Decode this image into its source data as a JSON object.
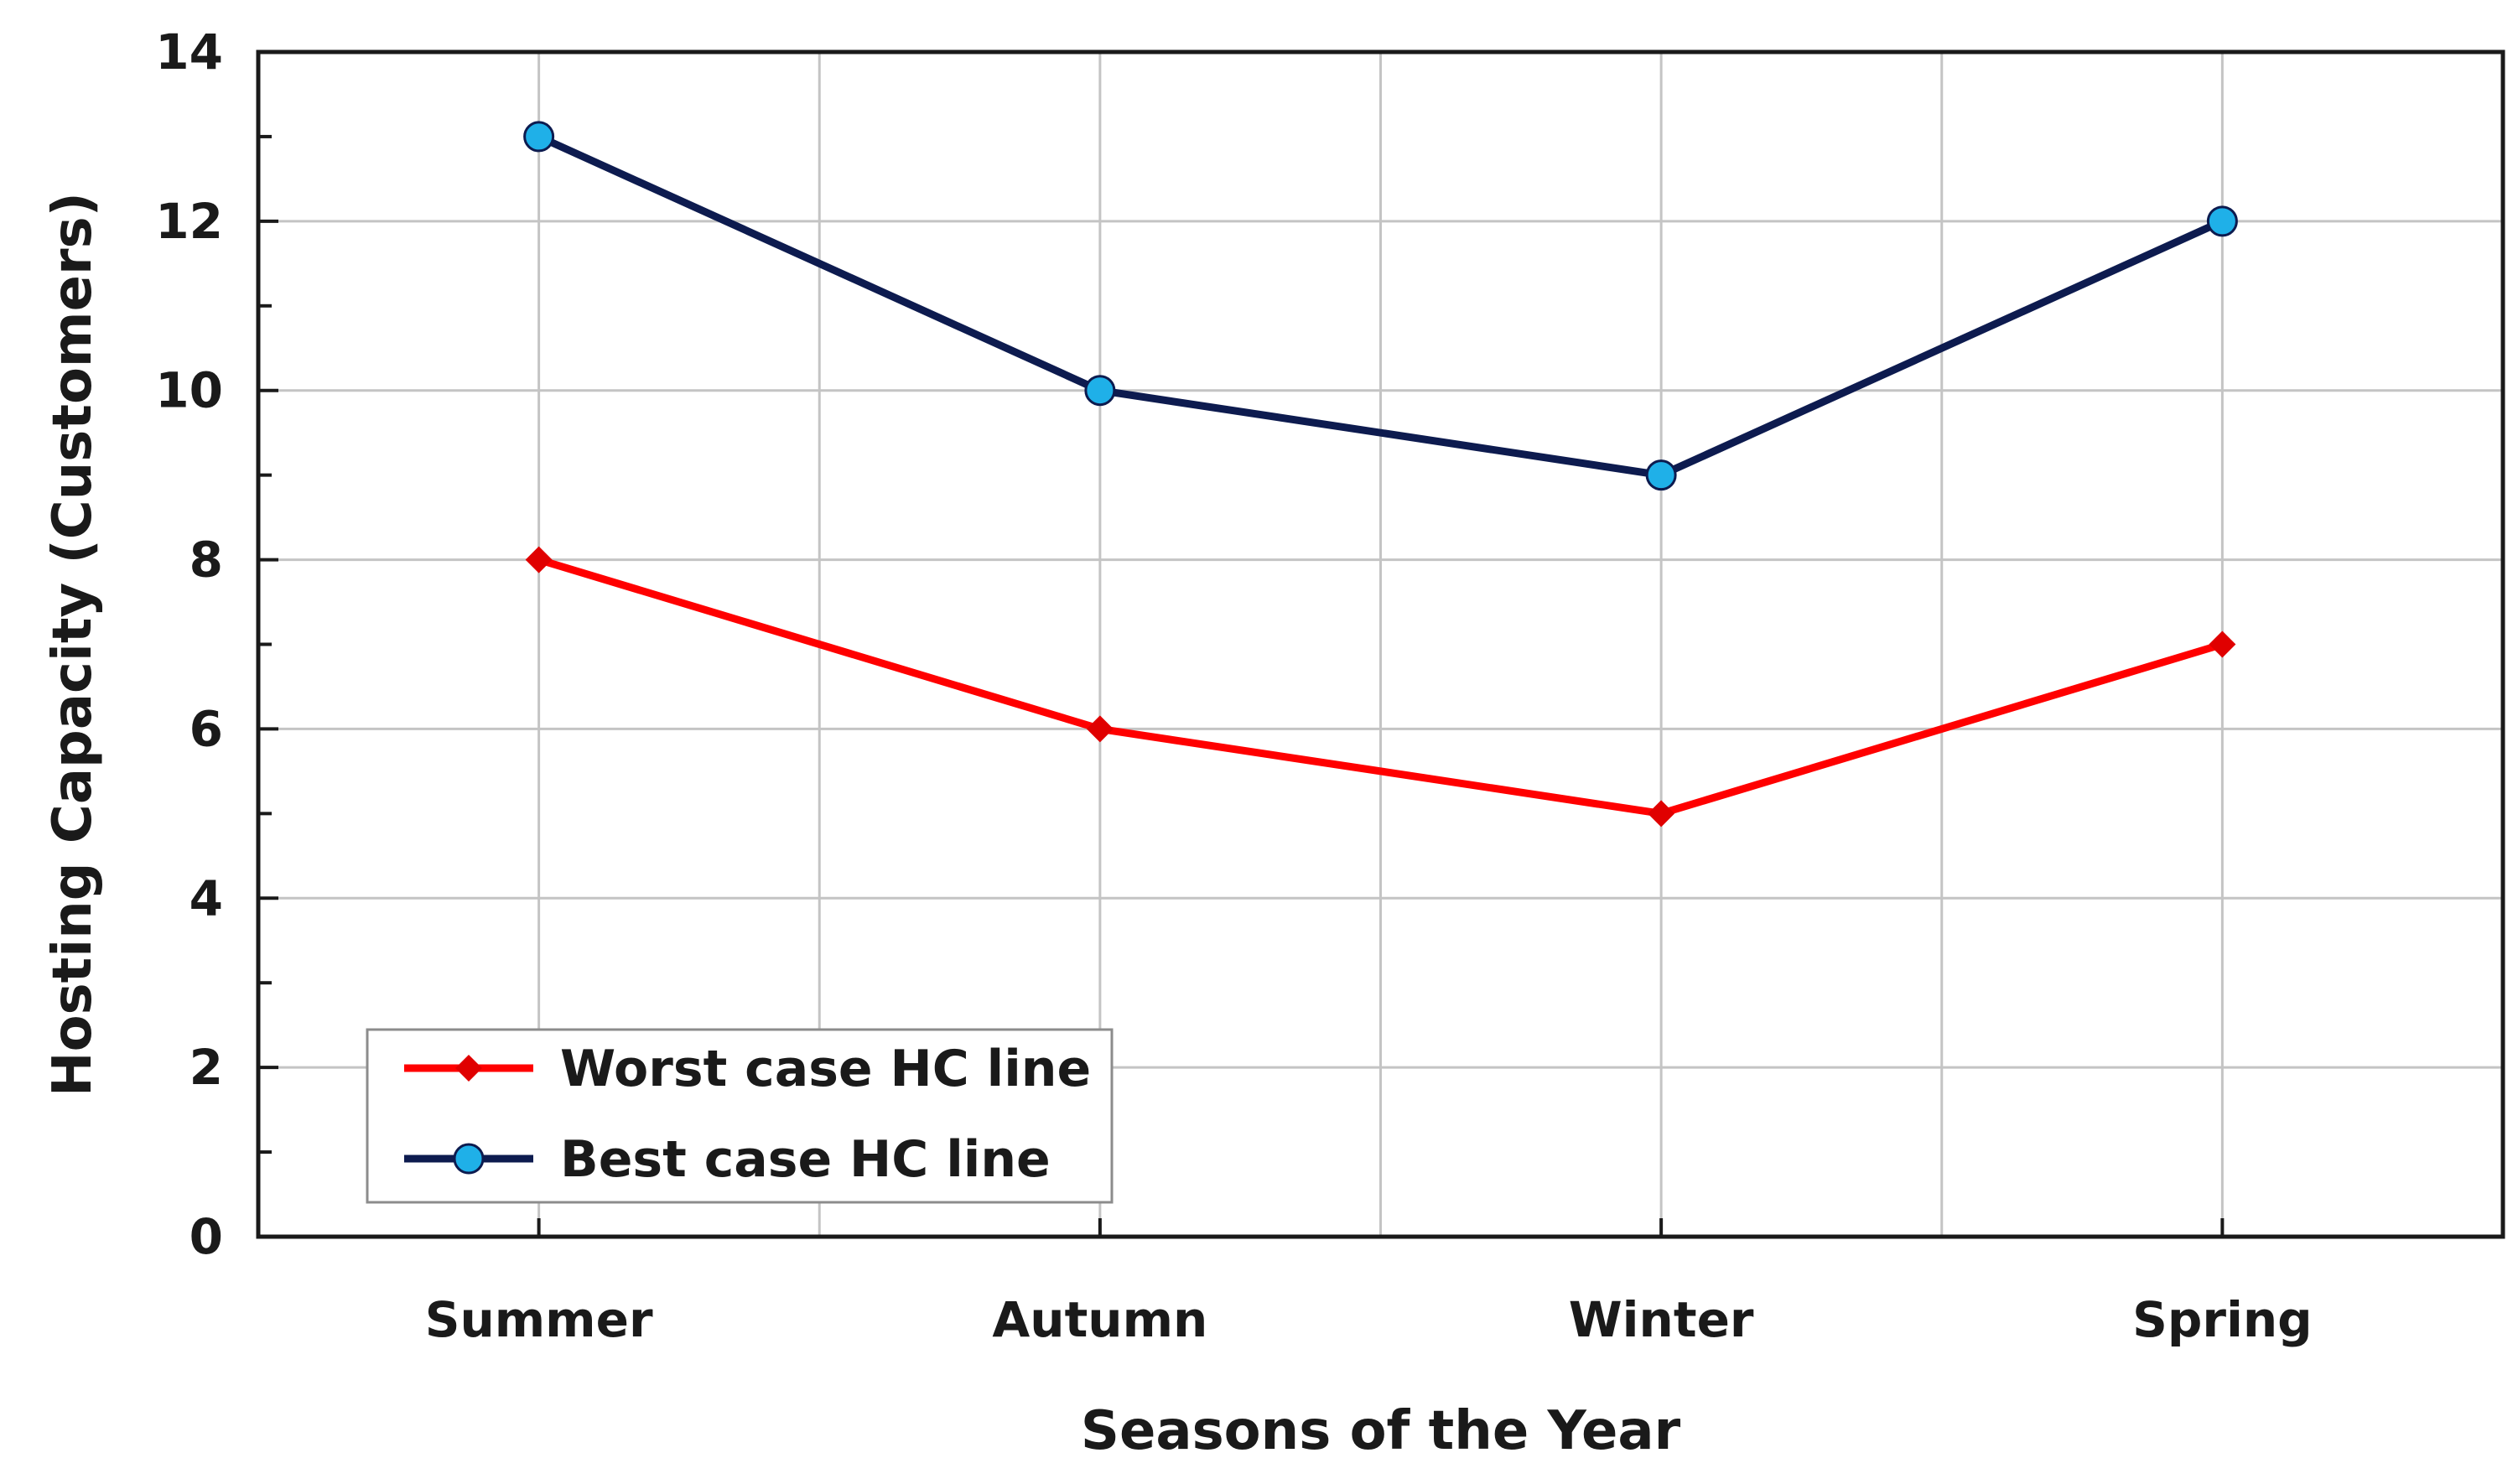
{
  "chart_data": {
    "type": "line",
    "xlabel": "Seasons of the Year",
    "ylabel": "Hosting Capacity (Customers)",
    "categories": [
      "Summer",
      "Autumn",
      "Winter",
      "Spring"
    ],
    "ylim": [
      0,
      14
    ],
    "yticks": [
      0,
      2,
      4,
      6,
      8,
      10,
      12,
      14
    ],
    "y_minor_step": 1,
    "grid": true,
    "legend_position": "bottom-left",
    "series": [
      {
        "name": "Worst case HC line",
        "values": [
          8,
          6,
          5,
          7
        ],
        "color": "#ff0000",
        "marker": "diamond",
        "marker_color": "#e00000"
      },
      {
        "name": "Best case HC line",
        "values": [
          13,
          10,
          9,
          12
        ],
        "color": "#0d1b4f",
        "marker": "circle",
        "marker_color": "#1fb0e8"
      }
    ]
  }
}
